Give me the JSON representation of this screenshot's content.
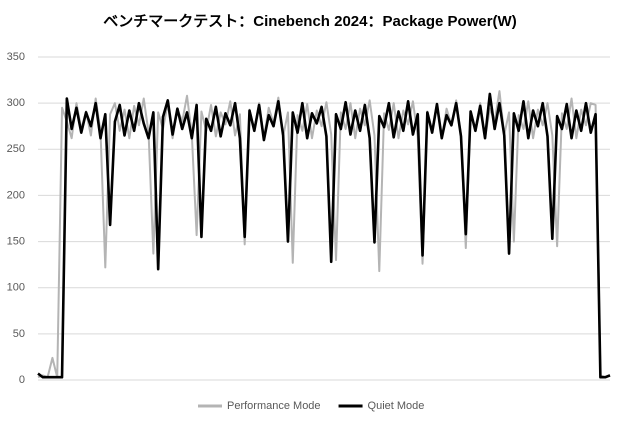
{
  "chart_data": {
    "type": "line",
    "title": "ベンチマークテスト：Cinebench 2024：Package Power(W)",
    "ylim": [
      0,
      350
    ],
    "yticks": [
      0,
      50,
      100,
      150,
      200,
      250,
      300,
      350
    ],
    "grid": true,
    "legend": "bottom",
    "series": [
      {
        "name": "Performance Mode",
        "color": "#b4b4b4",
        "values": [
          3,
          5,
          3,
          24,
          3,
          295,
          280,
          262,
          300,
          272,
          291,
          265,
          305,
          270,
          122,
          288,
          300,
          270,
          293,
          262,
          297,
          276,
          305,
          268,
          137,
          290,
          272,
          300,
          262,
          294,
          280,
          308,
          266,
          157,
          291,
          270,
          298,
          264,
          290,
          277,
          302,
          265,
          288,
          147,
          293,
          271,
          300,
          262,
          295,
          278,
          306,
          264,
          290,
          127,
          287,
          270,
          299,
          262,
          292,
          275,
          301,
          266,
          130,
          290,
          272,
          300,
          262,
          294,
          276,
          303,
          265,
          118,
          289,
          271,
          300,
          262,
          292,
          277,
          302,
          264,
          126,
          291,
          270,
          299,
          262,
          294,
          276,
          303,
          265,
          143,
          290,
          272,
          300,
          262,
          294,
          280,
          313,
          266,
          290,
          150,
          287,
          272,
          302,
          262,
          293,
          276,
          300,
          265,
          145,
          289,
          272,
          305,
          262,
          293,
          276,
          300,
          298,
          5,
          3,
          5
        ]
      },
      {
        "name": "Quiet Mode",
        "color": "#000000",
        "values": [
          7,
          3,
          3,
          3,
          3,
          3,
          305,
          272,
          295,
          268,
          290,
          275,
          300,
          262,
          288,
          168,
          280,
          298,
          265,
          292,
          270,
          300,
          278,
          262,
          290,
          120,
          285,
          303,
          266,
          294,
          272,
          290,
          262,
          298,
          155,
          283,
          270,
          296,
          264,
          289,
          276,
          300,
          262,
          155,
          292,
          270,
          298,
          260,
          287,
          275,
          302,
          265,
          150,
          290,
          268,
          300,
          262,
          289,
          278,
          296,
          264,
          128,
          288,
          272,
          301,
          266,
          292,
          270,
          298,
          262,
          149,
          286,
          274,
          300,
          263,
          291,
          270,
          302,
          266,
          288,
          135,
          290,
          268,
          299,
          262,
          287,
          276,
          300,
          264,
          158,
          291,
          270,
          297,
          262,
          310,
          272,
          300,
          265,
          137,
          289,
          270,
          302,
          262,
          292,
          275,
          300,
          264,
          153,
          286,
          272,
          299,
          262,
          292,
          270,
          300,
          268,
          288,
          3,
          3,
          5
        ]
      }
    ]
  }
}
